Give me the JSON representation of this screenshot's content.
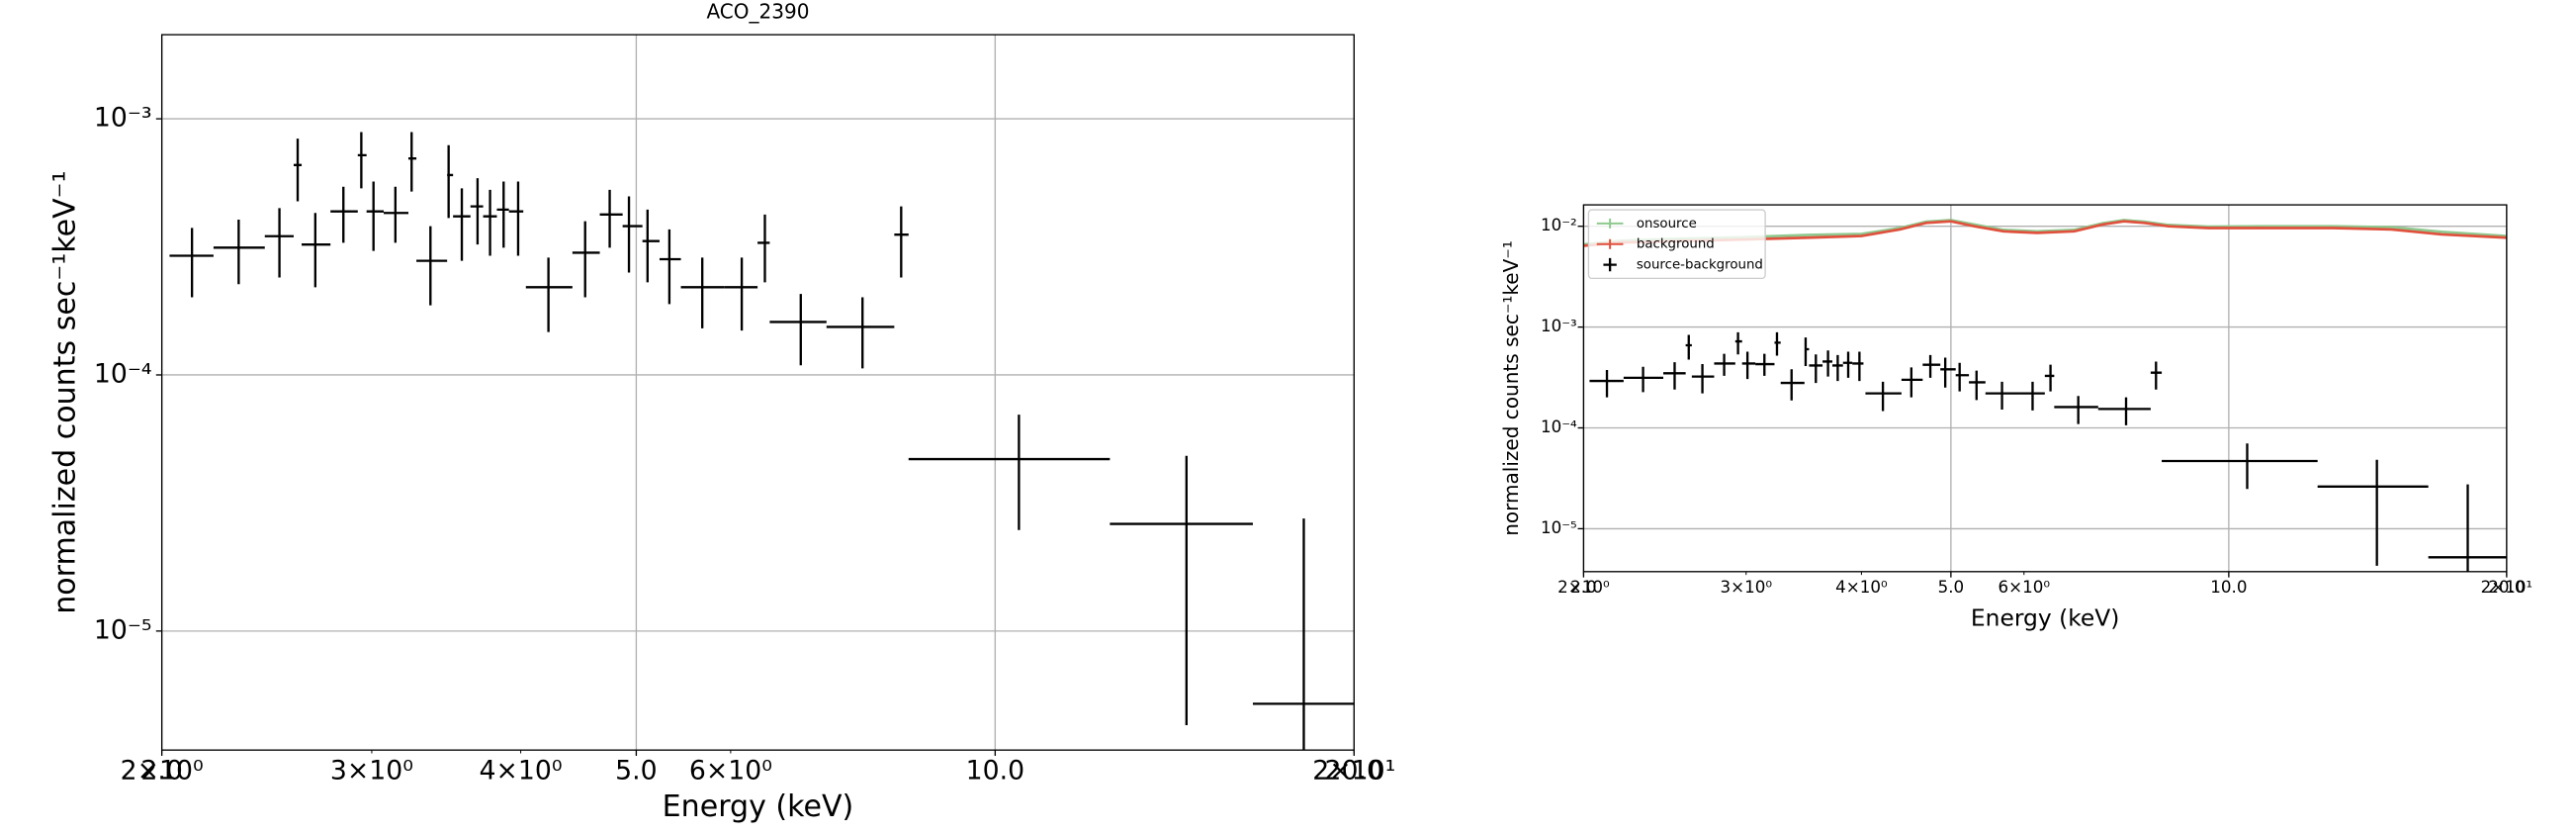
{
  "chart_data": [
    {
      "type": "errorbar",
      "title": "ACO_2390",
      "x_label": "Energy (keV)",
      "y_label": "normalized counts sec⁻¹keV⁻¹",
      "xscale": "log",
      "yscale": "log",
      "grid": true,
      "xlim": [
        2.0,
        20.0
      ],
      "ylim": [
        3.43e-06,
        0.00213
      ],
      "xticks": [
        {
          "value": 2,
          "label": "2.0"
        },
        {
          "value": 5,
          "label": "5.0"
        },
        {
          "value": 10,
          "label": "10.0"
        },
        {
          "value": 20,
          "label": "20.0"
        }
      ],
      "xticks_minor": [
        {
          "value": 2,
          "label": "2×10⁰"
        },
        {
          "value": 3,
          "label": "3×10⁰"
        },
        {
          "value": 4,
          "label": "4×10⁰"
        },
        {
          "value": 6,
          "label": "6×10⁰"
        },
        {
          "value": 20,
          "label": "2×10¹"
        }
      ],
      "yticks": [
        {
          "value": 0.001,
          "label": "10⁻³"
        },
        {
          "value": 0.0001,
          "label": "10⁻⁴"
        },
        {
          "value": 1e-05,
          "label": "10⁻⁵"
        }
      ],
      "series": [
        {
          "color": "#000000",
          "x": [
            2.12,
            2.32,
            2.51,
            2.6,
            2.69,
            2.84,
            2.94,
            3.01,
            3.14,
            3.24,
            3.36,
            3.48,
            3.57,
            3.68,
            3.77,
            3.87,
            3.98,
            4.22,
            4.53,
            4.75,
            4.93,
            5.11,
            5.33,
            5.68,
            6.13,
            6.41,
            6.87,
            7.74,
            8.34,
            10.47,
            14.47,
            18.15
          ],
          "x_low": [
            2.03,
            2.21,
            2.44,
            2.58,
            2.62,
            2.77,
            2.92,
            2.97,
            3.07,
            3.22,
            3.27,
            3.47,
            3.51,
            3.63,
            3.72,
            3.82,
            3.91,
            4.04,
            4.42,
            4.66,
            4.87,
            5.06,
            5.23,
            5.45,
            5.93,
            6.32,
            6.47,
            7.22,
            8.23,
            8.46,
            12.48,
            16.45
          ],
          "x_high": [
            2.21,
            2.44,
            2.58,
            2.62,
            2.77,
            2.92,
            2.97,
            3.07,
            3.22,
            3.27,
            3.47,
            3.51,
            3.63,
            3.72,
            3.82,
            3.91,
            4.02,
            4.42,
            4.66,
            4.87,
            5.06,
            5.23,
            5.45,
            5.93,
            6.32,
            6.47,
            7.22,
            8.23,
            8.46,
            12.48,
            16.45,
            20.0
          ],
          "values": [
            0.000292,
            0.000314,
            0.000348,
            0.00066,
            0.000323,
            0.000435,
            0.000721,
            0.000435,
            0.000429,
            0.0007,
            0.000279,
            0.000603,
            0.000416,
            0.000455,
            0.000416,
            0.000442,
            0.000435,
            0.00022,
            0.0003,
            0.000423,
            0.000381,
            0.000333,
            0.000283,
            0.00022,
            0.00022,
            0.000328,
            0.000161,
            0.000154,
            0.000353,
            4.69e-05,
            2.62e-05,
            5.2e-06
          ],
          "y_low": [
            0.000201,
            0.000226,
            0.00024,
            0.000476,
            0.00022,
            0.000328,
            0.000535,
            0.000305,
            0.000328,
            0.00052,
            0.000187,
            0.00041,
            0.000279,
            0.000323,
            0.000292,
            0.000314,
            0.000292,
            0.000147,
            0.000201,
            0.000314,
            0.000251,
            0.00023,
            0.000189,
            0.000152,
            0.000149,
            0.00023,
            0.000109,
            0.000106,
            0.00024,
            2.48e-05,
            4.29e-06,
            2e-06
          ],
          "y_high": [
            0.000375,
            0.000404,
            0.000448,
            0.000837,
            0.000429,
            0.000543,
            0.000888,
            0.000569,
            0.000543,
            0.000888,
            0.000381,
            0.000789,
            0.000535,
            0.000586,
            0.000528,
            0.000569,
            0.000569,
            0.000287,
            0.000398,
            0.000528,
            0.000498,
            0.000442,
            0.00037,
            0.000287,
            0.000287,
            0.000423,
            0.000207,
            0.000201,
            0.000455,
            7e-05,
            4.83e-05,
            2.75e-05
          ]
        }
      ]
    },
    {
      "type": "errorbar",
      "x_label": "Energy (keV)",
      "y_label": "normalized counts sec⁻¹keV⁻¹",
      "xscale": "log",
      "yscale": "log",
      "grid": true,
      "legend": "upper left",
      "xlim": [
        2.0,
        20.0
      ],
      "ylim": [
        3.75e-06,
        0.0163
      ],
      "xticks": [
        {
          "value": 2,
          "label": "2.0"
        },
        {
          "value": 5,
          "label": "5.0"
        },
        {
          "value": 10,
          "label": "10.0"
        },
        {
          "value": 20,
          "label": "20.0"
        }
      ],
      "xticks_minor": [
        {
          "value": 2,
          "label": "2×10⁰"
        },
        {
          "value": 3,
          "label": "3×10⁰"
        },
        {
          "value": 4,
          "label": "4×10⁰"
        },
        {
          "value": 6,
          "label": "6×10⁰"
        },
        {
          "value": 20,
          "label": "2×10¹"
        }
      ],
      "yticks": [
        {
          "value": 0.01,
          "label": "10⁻²"
        },
        {
          "value": 0.001,
          "label": "10⁻³"
        },
        {
          "value": 0.0001,
          "label": "10⁻⁴"
        },
        {
          "value": 1e-05,
          "label": "10⁻⁵"
        }
      ],
      "series": [
        {
          "name": "onsource",
          "color": "#8fc98f",
          "x": [
            2.0,
            2.2,
            2.5,
            3.0,
            3.5,
            4.0,
            4.4,
            4.7,
            5.0,
            5.3,
            5.7,
            6.2,
            6.8,
            7.3,
            7.7,
            8.1,
            8.6,
            9.5,
            11,
            13,
            15,
            17,
            20
          ],
          "values": [
            0.0066,
            0.0072,
            0.0075,
            0.0078,
            0.0082,
            0.0084,
            0.0096,
            0.0111,
            0.0115,
            0.0104,
            0.0092,
            0.0089,
            0.0092,
            0.0107,
            0.0115,
            0.0111,
            0.0103,
            0.0099,
            0.01,
            0.01,
            0.0098,
            0.0088,
            0.008
          ]
        },
        {
          "name": "background",
          "color": "#e0503c",
          "x": [
            2.0,
            2.2,
            2.5,
            3.0,
            3.5,
            4.0,
            4.4,
            4.7,
            5.0,
            5.3,
            5.7,
            6.2,
            6.8,
            7.3,
            7.7,
            8.1,
            8.6,
            9.5,
            11,
            13,
            15,
            17,
            20
          ],
          "values": [
            0.0064,
            0.0069,
            0.0071,
            0.0074,
            0.0077,
            0.008,
            0.0093,
            0.0108,
            0.0112,
            0.01,
            0.0089,
            0.0086,
            0.0089,
            0.0104,
            0.0112,
            0.0108,
            0.01,
            0.0096,
            0.0096,
            0.0096,
            0.0093,
            0.0083,
            0.0077
          ]
        },
        {
          "name": "source-background",
          "color": "#000000",
          "x": [
            2.12,
            2.32,
            2.51,
            2.6,
            2.69,
            2.84,
            2.94,
            3.01,
            3.14,
            3.24,
            3.36,
            3.48,
            3.57,
            3.68,
            3.77,
            3.87,
            3.98,
            4.22,
            4.53,
            4.75,
            4.93,
            5.11,
            5.33,
            5.68,
            6.13,
            6.41,
            6.87,
            7.74,
            8.34,
            10.47,
            14.47,
            18.15
          ],
          "x_low": [
            2.03,
            2.21,
            2.44,
            2.58,
            2.62,
            2.77,
            2.92,
            2.97,
            3.07,
            3.22,
            3.27,
            3.47,
            3.51,
            3.63,
            3.72,
            3.82,
            3.91,
            4.04,
            4.42,
            4.66,
            4.87,
            5.06,
            5.23,
            5.45,
            5.93,
            6.32,
            6.47,
            7.22,
            8.23,
            8.46,
            12.48,
            16.45
          ],
          "x_high": [
            2.21,
            2.44,
            2.58,
            2.62,
            2.77,
            2.92,
            2.97,
            3.07,
            3.22,
            3.27,
            3.47,
            3.51,
            3.63,
            3.72,
            3.82,
            3.91,
            4.02,
            4.42,
            4.66,
            4.87,
            5.06,
            5.23,
            5.45,
            5.93,
            6.32,
            6.47,
            7.22,
            8.23,
            8.46,
            12.48,
            16.45,
            20.0
          ],
          "values": [
            0.000292,
            0.000314,
            0.000348,
            0.00066,
            0.000323,
            0.000435,
            0.000721,
            0.000435,
            0.000429,
            0.0007,
            0.000279,
            0.000603,
            0.000416,
            0.000455,
            0.000416,
            0.000442,
            0.000435,
            0.00022,
            0.0003,
            0.000423,
            0.000381,
            0.000333,
            0.000283,
            0.00022,
            0.00022,
            0.000328,
            0.000161,
            0.000154,
            0.000353,
            4.69e-05,
            2.62e-05,
            5.2e-06
          ],
          "y_low": [
            0.000201,
            0.000226,
            0.00024,
            0.000476,
            0.00022,
            0.000328,
            0.000535,
            0.000305,
            0.000328,
            0.00052,
            0.000187,
            0.00041,
            0.000279,
            0.000323,
            0.000292,
            0.000314,
            0.000292,
            0.000147,
            0.000201,
            0.000314,
            0.000251,
            0.00023,
            0.000189,
            0.000152,
            0.000149,
            0.00023,
            0.000109,
            0.000106,
            0.00024,
            2.48e-05,
            4.29e-06,
            2e-06
          ],
          "y_high": [
            0.000375,
            0.000404,
            0.000448,
            0.000837,
            0.000429,
            0.000543,
            0.000888,
            0.000569,
            0.000543,
            0.000888,
            0.000381,
            0.000789,
            0.000535,
            0.000586,
            0.000528,
            0.000569,
            0.000569,
            0.000287,
            0.000398,
            0.000528,
            0.000498,
            0.000442,
            0.00037,
            0.000287,
            0.000287,
            0.000423,
            0.000207,
            0.000201,
            0.000455,
            7e-05,
            4.83e-05,
            2.75e-05
          ]
        }
      ]
    }
  ]
}
